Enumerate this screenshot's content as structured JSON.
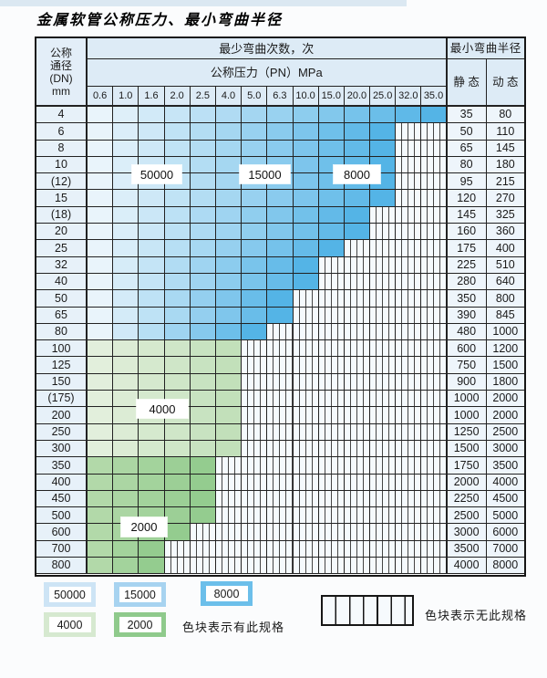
{
  "title": "金属软管公称压力、最小弯曲半径",
  "table": {
    "header": {
      "dn_lines": {
        "l1": "公称",
        "l2": "通径",
        "l3": "(DN)",
        "l4": "mm"
      },
      "cycles": "最少弯曲次数，次",
      "pressure": "公称压力（PN）MPa",
      "radius": "最小弯曲半径",
      "static": "静 态",
      "dynamic": "动 态"
    },
    "pressures": [
      "0.6",
      "1.0",
      "1.6",
      "2.0",
      "2.5",
      "4.0",
      "5.0",
      "6.3",
      "10.0",
      "15.0",
      "20.0",
      "25.0",
      "32.0",
      "35.0"
    ],
    "rows": [
      {
        "dn": "4",
        "specified_through": "35.0",
        "band": "blue",
        "static": "35",
        "dynamic": "80"
      },
      {
        "dn": "6",
        "specified_through": "25.0",
        "band": "blue",
        "static": "50",
        "dynamic": "110"
      },
      {
        "dn": "8",
        "specified_through": "25.0",
        "band": "blue",
        "static": "65",
        "dynamic": "145"
      },
      {
        "dn": "10",
        "specified_through": "25.0",
        "band": "blue",
        "static": "80",
        "dynamic": "180"
      },
      {
        "dn": "(12)",
        "specified_through": "25.0",
        "band": "blue",
        "static": "95",
        "dynamic": "215"
      },
      {
        "dn": "15",
        "specified_through": "25.0",
        "band": "blue",
        "static": "120",
        "dynamic": "270"
      },
      {
        "dn": "(18)",
        "specified_through": "20.0",
        "band": "blue",
        "static": "145",
        "dynamic": "325"
      },
      {
        "dn": "20",
        "specified_through": "20.0",
        "band": "blue",
        "static": "160",
        "dynamic": "360"
      },
      {
        "dn": "25",
        "specified_through": "15.0",
        "band": "blue",
        "static": "175",
        "dynamic": "400"
      },
      {
        "dn": "32",
        "specified_through": "10.0",
        "band": "blue",
        "static": "225",
        "dynamic": "510"
      },
      {
        "dn": "40",
        "specified_through": "10.0",
        "band": "blue",
        "static": "280",
        "dynamic": "640"
      },
      {
        "dn": "50",
        "specified_through": "6.3",
        "band": "blue",
        "static": "350",
        "dynamic": "800"
      },
      {
        "dn": "65",
        "specified_through": "6.3",
        "band": "blue",
        "static": "390",
        "dynamic": "845"
      },
      {
        "dn": "80",
        "specified_through": "5.0",
        "band": "blue",
        "static": "480",
        "dynamic": "1000"
      },
      {
        "dn": "100",
        "specified_through": "4.0",
        "band": "green-4000",
        "static": "600",
        "dynamic": "1200"
      },
      {
        "dn": "125",
        "specified_through": "4.0",
        "band": "green-4000",
        "static": "750",
        "dynamic": "1500"
      },
      {
        "dn": "150",
        "specified_through": "4.0",
        "band": "green-4000",
        "static": "900",
        "dynamic": "1800"
      },
      {
        "dn": "(175)",
        "specified_through": "4.0",
        "band": "green-4000",
        "static": "1000",
        "dynamic": "2000"
      },
      {
        "dn": "200",
        "specified_through": "4.0",
        "band": "green-4000",
        "static": "1000",
        "dynamic": "2000"
      },
      {
        "dn": "250",
        "specified_through": "4.0",
        "band": "green-4000",
        "static": "1250",
        "dynamic": "2500"
      },
      {
        "dn": "300",
        "specified_through": "4.0",
        "band": "green-4000",
        "static": "1500",
        "dynamic": "3000"
      },
      {
        "dn": "350",
        "specified_through": "2.5",
        "band": "green-2000",
        "static": "1750",
        "dynamic": "3500"
      },
      {
        "dn": "400",
        "specified_through": "2.5",
        "band": "green-2000",
        "static": "2000",
        "dynamic": "4000"
      },
      {
        "dn": "450",
        "specified_through": "2.5",
        "band": "green-2000",
        "static": "2250",
        "dynamic": "4500"
      },
      {
        "dn": "500",
        "specified_through": "2.5",
        "band": "green-2000",
        "static": "2500",
        "dynamic": "5000"
      },
      {
        "dn": "600",
        "specified_through": "2.0",
        "band": "green-2000",
        "static": "3000",
        "dynamic": "6000"
      },
      {
        "dn": "700",
        "specified_through": "1.6",
        "band": "green-2000",
        "static": "3500",
        "dynamic": "7000"
      },
      {
        "dn": "800",
        "specified_through": "1.6",
        "band": "green-2000",
        "static": "4000",
        "dynamic": "8000"
      }
    ],
    "band_colors": {
      "blue": {
        "start": "#e9f4fb",
        "end": "#54b4e6"
      },
      "green-4000": {
        "start": "#e2efdc",
        "end": "#c2e0ba"
      },
      "green-2000": {
        "start": "#b2d9a9",
        "end": "#94cc8f"
      }
    },
    "zone_labels": {
      "z50000": "50000",
      "z15000": "15000",
      "z8000": "8000",
      "z4000": "4000",
      "z2000": "2000"
    }
  },
  "legend": {
    "swatches": [
      {
        "label": "50000",
        "color": "#cde4f5"
      },
      {
        "label": "15000",
        "color": "#a7d3f0"
      },
      {
        "label": "8000",
        "color": "#6cbfea"
      },
      {
        "label": "4000",
        "color": "#d6e9d0"
      },
      {
        "label": "2000",
        "color": "#8fca8c"
      }
    ],
    "note_has_spec": "色块表示有此规格",
    "note_no_spec": "色块表示无此规格"
  }
}
